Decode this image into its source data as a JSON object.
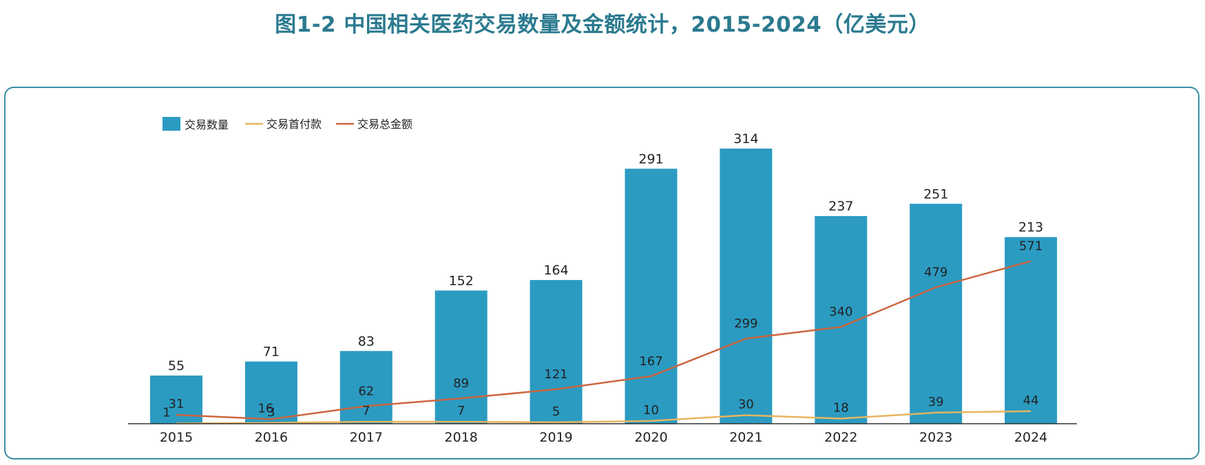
{
  "title": "图1-2 中国相关医药交易数量及金额统计，2015-2024（亿美元）",
  "colors": {
    "title": "#2b7a8f",
    "frame": "#3a8ea3",
    "bar": "#2b9bc2",
    "upfront": "#e8b45e",
    "total": "#cc6640",
    "axis": "#333333"
  },
  "chart_data": {
    "type": "bar",
    "categories": [
      "2015",
      "2016",
      "2017",
      "2018",
      "2019",
      "2020",
      "2021",
      "2022",
      "2023",
      "2024"
    ],
    "legend_placement": "top-left",
    "grid": false,
    "series": [
      {
        "name": "交易数量",
        "type": "bar",
        "values": [
          55,
          71,
          83,
          152,
          164,
          291,
          314,
          237,
          251,
          213
        ]
      },
      {
        "name": "交易首付款",
        "type": "line",
        "values": [
          1,
          3,
          7,
          7,
          5,
          10,
          30,
          18,
          39,
          44
        ]
      },
      {
        "name": "交易总金额",
        "type": "line",
        "values": [
          31,
          16,
          62,
          89,
          121,
          167,
          299,
          340,
          479,
          571
        ]
      }
    ],
    "ylim_bar": [
      0,
      314
    ],
    "ylim_line": [
      0,
      1000
    ]
  }
}
